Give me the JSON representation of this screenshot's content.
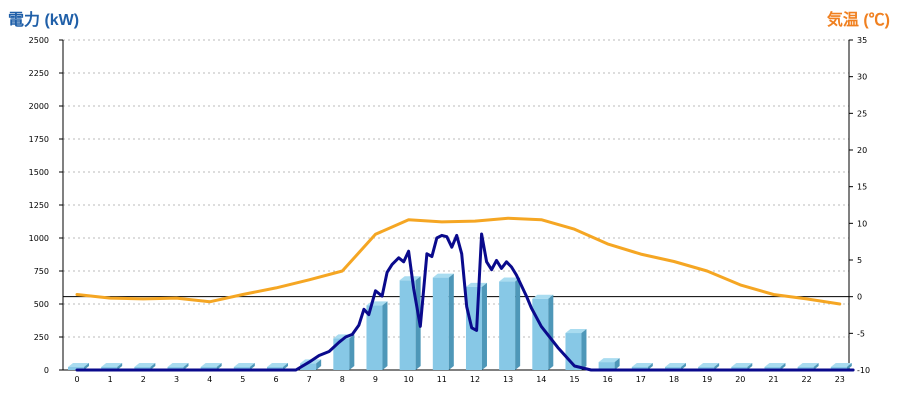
{
  "chart_data": {
    "type": "bar+line",
    "left_axis_label": "電力 (kW)",
    "right_axis_label": "気温 (℃)",
    "categories": [
      "0",
      "1",
      "2",
      "3",
      "4",
      "5",
      "6",
      "7",
      "8",
      "9",
      "10",
      "11",
      "12",
      "13",
      "14",
      "15",
      "16",
      "17",
      "18",
      "19",
      "20",
      "21",
      "22",
      "23"
    ],
    "left_axis": {
      "range": [
        0,
        2500
      ],
      "ticks": [
        0,
        250,
        500,
        750,
        1000,
        1250,
        1500,
        1750,
        2000,
        2250,
        2500
      ]
    },
    "right_axis": {
      "range": [
        -10,
        35
      ],
      "ticks": [
        -10,
        -5,
        0,
        5,
        10,
        15,
        20,
        25,
        30,
        35
      ],
      "zero_line": true
    },
    "grid": true,
    "series": [
      {
        "kind": "bar",
        "axis": "left",
        "color": "#87c8e6",
        "values": [
          0,
          0,
          0,
          0,
          0,
          0,
          0,
          50,
          240,
          490,
          680,
          700,
          630,
          670,
          540,
          280,
          60,
          0,
          0,
          0,
          0,
          0,
          0,
          0
        ]
      },
      {
        "kind": "line",
        "axis": "left",
        "color": "#0a0a8c",
        "x": [
          0,
          6.6,
          7,
          7.3,
          7.6,
          7.9,
          8.1,
          8.3,
          8.5,
          8.65,
          8.8,
          9.0,
          9.2,
          9.35,
          9.5,
          9.7,
          9.85,
          10.0,
          10.15,
          10.35,
          10.55,
          10.7,
          10.85,
          11.0,
          11.15,
          11.3,
          11.45,
          11.6,
          11.75,
          11.9,
          12.05,
          12.2,
          12.35,
          12.5,
          12.65,
          12.8,
          12.95,
          13.1,
          13.25,
          13.4,
          13.55,
          13.7,
          14.0,
          14.5,
          15.0,
          15.5,
          15.9,
          16.1,
          23.4
        ],
        "values": [
          0,
          0,
          60,
          110,
          140,
          210,
          250,
          270,
          340,
          460,
          420,
          600,
          560,
          740,
          800,
          850,
          820,
          900,
          620,
          330,
          880,
          860,
          1000,
          1020,
          1010,
          930,
          1020,
          880,
          480,
          320,
          300,
          1030,
          820,
          760,
          830,
          770,
          820,
          780,
          720,
          640,
          560,
          470,
          330,
          170,
          30,
          0,
          0,
          0,
          0
        ]
      },
      {
        "kind": "line",
        "axis": "right",
        "color": "#f5a623",
        "x": [
          0,
          1,
          2,
          3,
          4,
          5,
          6,
          7,
          8,
          9,
          10,
          11,
          12,
          13,
          14,
          15,
          16,
          17,
          18,
          19,
          20,
          21,
          22,
          23
        ],
        "values": [
          0.3,
          -0.2,
          -0.3,
          -0.2,
          -0.7,
          0.3,
          1.2,
          2.3,
          3.5,
          8.5,
          10.5,
          10.2,
          10.3,
          10.7,
          10.5,
          9.2,
          7.2,
          5.8,
          4.8,
          3.5,
          1.6,
          0.3,
          -0.3,
          -1.0
        ]
      }
    ]
  }
}
